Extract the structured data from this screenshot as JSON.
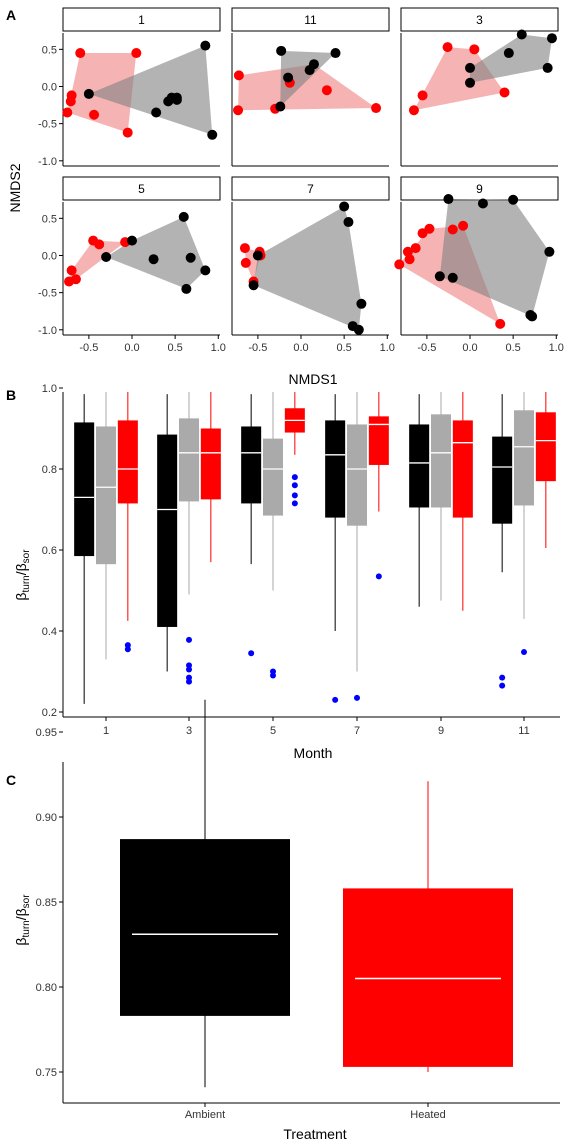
{
  "colors": {
    "ambient": "#000000",
    "heated": "#ff0000",
    "gray": "#aaaaaa",
    "outlier": "#0000ff",
    "heated_fill": "#f08080",
    "ambient_fill": "#808080"
  },
  "panel_labels": {
    "a": "A",
    "b": "B",
    "c": "C"
  },
  "chart_data": [
    {
      "type": "scatter",
      "panel": "A",
      "xlabel": "NMDS1",
      "ylabel": "NMDS2",
      "xlim": [
        -0.8,
        1.02
      ],
      "ylim": [
        -1.07,
        0.72
      ],
      "xticks": [
        "-0.5",
        "0.0",
        "0.5",
        "1.0"
      ],
      "xtick_values": [
        -0.5,
        0.0,
        0.5,
        1.0
      ],
      "yticks": [
        "0.5",
        "0.0",
        "-0.5",
        "-1.0"
      ],
      "ytick_values": [
        0.5,
        0.0,
        -0.5,
        -1.0
      ],
      "facets": [
        {
          "label": "1",
          "heated": [
            [
              -0.6,
              0.45
            ],
            [
              -0.7,
              -0.12
            ],
            [
              -0.71,
              -0.2
            ],
            [
              -0.75,
              -0.35
            ],
            [
              -0.44,
              -0.38
            ],
            [
              -0.05,
              -0.62
            ],
            [
              0.05,
              0.45
            ]
          ],
          "ambient": [
            [
              -0.5,
              -0.1
            ],
            [
              0.28,
              -0.35
            ],
            [
              0.42,
              -0.2
            ],
            [
              0.46,
              -0.15
            ],
            [
              0.52,
              -0.15
            ],
            [
              0.52,
              -0.18
            ],
            [
              0.85,
              0.55
            ],
            [
              0.93,
              -0.65
            ]
          ]
        },
        {
          "label": "11",
          "heated": [
            [
              -0.72,
              0.15
            ],
            [
              -0.73,
              -0.32
            ],
            [
              -0.3,
              -0.3
            ],
            [
              -0.13,
              0.05
            ],
            [
              0.3,
              -0.05
            ],
            [
              0.87,
              -0.29
            ]
          ],
          "ambient": [
            [
              -0.23,
              0.48
            ],
            [
              -0.24,
              -0.27
            ],
            [
              0.1,
              0.22
            ],
            [
              0.15,
              0.3
            ],
            [
              0.4,
              0.45
            ],
            [
              -0.15,
              0.12
            ]
          ],
          "heated_hull": [
            [
              -0.72,
              0.15
            ],
            [
              0.15,
              0.3
            ],
            [
              0.87,
              -0.29
            ],
            [
              -0.73,
              -0.32
            ]
          ]
        },
        {
          "label": "3",
          "heated": [
            [
              -0.65,
              -0.32
            ],
            [
              -0.55,
              -0.12
            ],
            [
              -0.26,
              0.53
            ],
            [
              0.05,
              0.5
            ],
            [
              0.4,
              -0.08
            ]
          ],
          "ambient": [
            [
              0.0,
              0.25
            ],
            [
              0.0,
              0.05
            ],
            [
              0.45,
              0.45
            ],
            [
              0.6,
              0.7
            ],
            [
              0.9,
              0.25
            ],
            [
              0.95,
              0.65
            ]
          ]
        },
        {
          "label": "5",
          "heated": [
            [
              -0.7,
              -0.2
            ],
            [
              -0.73,
              -0.35
            ],
            [
              -0.65,
              -0.32
            ],
            [
              -0.45,
              0.2
            ],
            [
              -0.38,
              0.15
            ],
            [
              -0.08,
              0.18
            ]
          ],
          "ambient": [
            [
              -0.3,
              -0.02
            ],
            [
              0.0,
              0.2
            ],
            [
              0.25,
              -0.05
            ],
            [
              0.6,
              0.52
            ],
            [
              0.68,
              -0.03
            ],
            [
              0.63,
              -0.45
            ],
            [
              0.85,
              -0.2
            ]
          ]
        },
        {
          "label": "7",
          "heated": [
            [
              -0.65,
              0.1
            ],
            [
              -0.64,
              -0.1
            ],
            [
              -0.55,
              -0.35
            ],
            [
              -0.48,
              0.05
            ],
            [
              -0.47,
              0.0
            ]
          ],
          "ambient": [
            [
              -0.55,
              -0.4
            ],
            [
              0.5,
              0.66
            ],
            [
              0.55,
              0.45
            ],
            [
              0.6,
              -0.95
            ],
            [
              0.67,
              -1.0
            ],
            [
              0.7,
              -0.65
            ],
            [
              -0.5,
              0.0
            ]
          ]
        },
        {
          "label": "9",
          "heated": [
            [
              -0.82,
              -0.12
            ],
            [
              -0.72,
              0.05
            ],
            [
              -0.7,
              -0.05
            ],
            [
              -0.63,
              0.1
            ],
            [
              -0.55,
              0.3
            ],
            [
              -0.47,
              0.36
            ],
            [
              -0.2,
              0.35
            ],
            [
              -0.08,
              0.4
            ],
            [
              0.35,
              -0.92
            ]
          ],
          "ambient": [
            [
              -0.25,
              0.76
            ],
            [
              -0.35,
              -0.28
            ],
            [
              0.15,
              0.7
            ],
            [
              0.5,
              0.75
            ],
            [
              0.7,
              -0.8
            ],
            [
              0.72,
              -0.82
            ],
            [
              0.92,
              0.05
            ],
            [
              -0.2,
              -0.3
            ]
          ],
          "heated_hull": [
            [
              -0.82,
              -0.12
            ],
            [
              -0.47,
              0.36
            ],
            [
              -0.08,
              0.4
            ],
            [
              0.35,
              -0.92
            ]
          ]
        }
      ]
    },
    {
      "type": "box",
      "panel": "B",
      "xlabel": "Month",
      "ylabel_main": "β",
      "ylabel_sub1": "turn",
      "ylabel_sep": "/β",
      "ylabel_sub2": "sor",
      "ylim": [
        0.2,
        1.0
      ],
      "yticks": [
        "0.2",
        "0.4",
        "0.6",
        "0.8",
        "1.0"
      ],
      "ytick_values": [
        0.2,
        0.4,
        0.6,
        0.8,
        1.0
      ],
      "categories": [
        "1",
        "3",
        "5",
        "7",
        "9",
        "11"
      ],
      "groups": [
        {
          "month": "1",
          "boxes": [
            {
              "fill": "black",
              "q1": 0.585,
              "median": 0.73,
              "q3": 0.915,
              "min": 0.22,
              "max": 0.985
            },
            {
              "fill": "gray",
              "q1": 0.565,
              "median": 0.755,
              "q3": 0.905,
              "min": 0.33,
              "max": 0.99
            },
            {
              "fill": "red",
              "q1": 0.715,
              "median": 0.8,
              "q3": 0.92,
              "min": 0.425,
              "max": 0.99
            }
          ],
          "outliers": [
            [
              0.26,
              0.365
            ],
            [
              0.26,
              0.355
            ]
          ]
        },
        {
          "month": "3",
          "boxes": [
            {
              "fill": "black",
              "q1": 0.41,
              "median": 0.7,
              "q3": 0.885,
              "min": 0.3,
              "max": 0.985
            },
            {
              "fill": "gray",
              "q1": 0.72,
              "median": 0.84,
              "q3": 0.925,
              "min": 0.49,
              "max": 0.99
            },
            {
              "fill": "red",
              "q1": 0.725,
              "median": 0.84,
              "q3": 0.9,
              "min": 0.57,
              "max": 0.99
            }
          ],
          "outliers": [
            [
              0.0,
              0.378
            ],
            [
              0.0,
              0.315
            ],
            [
              0.0,
              0.305
            ],
            [
              0.0,
              0.285
            ],
            [
              0.0,
              0.275
            ]
          ]
        },
        {
          "month": "5",
          "boxes": [
            {
              "fill": "black",
              "q1": 0.715,
              "median": 0.84,
              "q3": 0.905,
              "min": 0.565,
              "max": 0.985
            },
            {
              "fill": "gray",
              "q1": 0.685,
              "median": 0.8,
              "q3": 0.875,
              "min": 0.5,
              "max": 0.99
            },
            {
              "fill": "red",
              "q1": 0.89,
              "median": 0.92,
              "q3": 0.95,
              "min": 0.835,
              "max": 0.99
            }
          ],
          "outliers": [
            [
              -0.26,
              0.345
            ],
            [
              0.0,
              0.3
            ],
            [
              0.0,
              0.29
            ],
            [
              0.26,
              0.78
            ],
            [
              0.26,
              0.76
            ],
            [
              0.26,
              0.735
            ],
            [
              0.26,
              0.715
            ]
          ]
        },
        {
          "month": "7",
          "boxes": [
            {
              "fill": "black",
              "q1": 0.68,
              "median": 0.835,
              "q3": 0.92,
              "min": 0.4,
              "max": 0.985
            },
            {
              "fill": "gray",
              "q1": 0.66,
              "median": 0.8,
              "q3": 0.91,
              "min": 0.3,
              "max": 0.99
            },
            {
              "fill": "red",
              "q1": 0.81,
              "median": 0.91,
              "q3": 0.93,
              "min": 0.695,
              "max": 0.99
            }
          ],
          "outliers": [
            [
              -0.26,
              0.23
            ],
            [
              0.0,
              0.235
            ],
            [
              0.26,
              0.535
            ]
          ]
        },
        {
          "month": "9",
          "boxes": [
            {
              "fill": "black",
              "q1": 0.705,
              "median": 0.815,
              "q3": 0.91,
              "min": 0.46,
              "max": 0.985
            },
            {
              "fill": "gray",
              "q1": 0.705,
              "median": 0.84,
              "q3": 0.935,
              "min": 0.475,
              "max": 0.99
            },
            {
              "fill": "red",
              "q1": 0.68,
              "median": 0.865,
              "q3": 0.92,
              "min": 0.45,
              "max": 0.99
            }
          ],
          "outliers": []
        },
        {
          "month": "11",
          "boxes": [
            {
              "fill": "black",
              "q1": 0.665,
              "median": 0.805,
              "q3": 0.88,
              "min": 0.545,
              "max": 0.985
            },
            {
              "fill": "gray",
              "q1": 0.71,
              "median": 0.855,
              "q3": 0.945,
              "min": 0.43,
              "max": 0.99
            },
            {
              "fill": "red",
              "q1": 0.77,
              "median": 0.87,
              "q3": 0.94,
              "min": 0.605,
              "max": 0.99
            }
          ],
          "outliers": [
            [
              -0.26,
              0.285
            ],
            [
              -0.26,
              0.265
            ],
            [
              0.0,
              0.348
            ]
          ]
        }
      ]
    },
    {
      "type": "box",
      "panel": "C",
      "xlabel": "Treatment",
      "ylabel_main": "β",
      "ylabel_sub1": "turn",
      "ylabel_sep": "/β",
      "ylabel_sub2": "sor",
      "ylim": [
        0.736,
        0.983
      ],
      "yticks": [
        "0.75",
        "0.80",
        "0.85",
        "0.90",
        "0.95"
      ],
      "ytick_values": [
        0.75,
        0.8,
        0.85,
        0.9,
        0.95
      ],
      "categories": [
        "Ambient",
        "Heated"
      ],
      "boxes": [
        {
          "label": "Ambient",
          "fill": "black",
          "q1": 0.783,
          "median": 0.831,
          "q3": 0.887,
          "min": 0.741,
          "max": 0.969
        },
        {
          "label": "Heated",
          "fill": "red",
          "q1": 0.753,
          "median": 0.805,
          "q3": 0.858,
          "min": 0.75,
          "max": 0.921
        }
      ]
    }
  ]
}
